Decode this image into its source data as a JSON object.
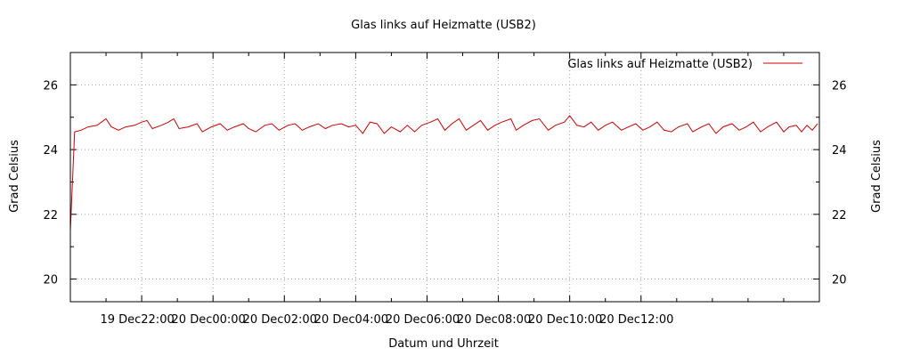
{
  "chart_data": {
    "type": "line",
    "title": "Glas links auf Heizmatte (USB2)",
    "xlabel": "Datum und Uhrzeit",
    "ylabel": "Grad Celsius",
    "y2label": "Grad Celsius",
    "ylim": [
      19.3,
      27.0
    ],
    "y_ticks": [
      20,
      22,
      24,
      26
    ],
    "x_ticks": [
      "19 Dec22:00",
      "20 Dec00:00",
      "20 Dec02:00",
      "20 Dec04:00",
      "20 Dec06:00",
      "20 Dec08:00",
      "20 Dec10:00",
      "20 Dec12:00"
    ],
    "grid": true,
    "legend_position": "top-right",
    "colors": {
      "series": "#cc0000",
      "grid": "#a0a0a0",
      "axis": "#000000"
    },
    "series": [
      {
        "name": "Glas links auf Heizmatte (USB2)",
        "x_hours_note": "x values in hours since 19 Dec 20:00",
        "points": [
          [
            0.0,
            21.5
          ],
          [
            0.12,
            24.55
          ],
          [
            0.3,
            24.6
          ],
          [
            0.5,
            24.7
          ],
          [
            0.75,
            24.75
          ],
          [
            1.0,
            24.95
          ],
          [
            1.15,
            24.7
          ],
          [
            1.35,
            24.6
          ],
          [
            1.55,
            24.7
          ],
          [
            1.8,
            24.75
          ],
          [
            2.0,
            24.85
          ],
          [
            2.15,
            24.9
          ],
          [
            2.3,
            24.65
          ],
          [
            2.55,
            24.75
          ],
          [
            2.75,
            24.85
          ],
          [
            2.9,
            24.95
          ],
          [
            3.05,
            24.65
          ],
          [
            3.3,
            24.7
          ],
          [
            3.55,
            24.8
          ],
          [
            3.7,
            24.55
          ],
          [
            3.95,
            24.7
          ],
          [
            4.2,
            24.8
          ],
          [
            4.4,
            24.6
          ],
          [
            4.6,
            24.7
          ],
          [
            4.85,
            24.8
          ],
          [
            5.0,
            24.65
          ],
          [
            5.2,
            24.55
          ],
          [
            5.45,
            24.75
          ],
          [
            5.65,
            24.8
          ],
          [
            5.85,
            24.6
          ],
          [
            6.1,
            24.75
          ],
          [
            6.3,
            24.8
          ],
          [
            6.5,
            24.6
          ],
          [
            6.7,
            24.7
          ],
          [
            6.95,
            24.8
          ],
          [
            7.15,
            24.65
          ],
          [
            7.35,
            24.75
          ],
          [
            7.6,
            24.8
          ],
          [
            7.8,
            24.7
          ],
          [
            8.0,
            24.75
          ],
          [
            8.2,
            24.5
          ],
          [
            8.4,
            24.85
          ],
          [
            8.6,
            24.8
          ],
          [
            8.8,
            24.5
          ],
          [
            9.0,
            24.7
          ],
          [
            9.25,
            24.55
          ],
          [
            9.45,
            24.75
          ],
          [
            9.65,
            24.55
          ],
          [
            9.85,
            24.75
          ],
          [
            10.1,
            24.85
          ],
          [
            10.3,
            24.95
          ],
          [
            10.5,
            24.6
          ],
          [
            10.7,
            24.8
          ],
          [
            10.9,
            24.95
          ],
          [
            11.1,
            24.6
          ],
          [
            11.3,
            24.75
          ],
          [
            11.5,
            24.9
          ],
          [
            11.7,
            24.6
          ],
          [
            11.9,
            24.75
          ],
          [
            12.1,
            24.85
          ],
          [
            12.35,
            24.95
          ],
          [
            12.5,
            24.6
          ],
          [
            12.7,
            24.75
          ],
          [
            12.95,
            24.9
          ],
          [
            13.15,
            24.95
          ],
          [
            13.4,
            24.6
          ],
          [
            13.6,
            24.75
          ],
          [
            13.85,
            24.85
          ],
          [
            14.0,
            25.05
          ],
          [
            14.2,
            24.75
          ],
          [
            14.4,
            24.7
          ],
          [
            14.6,
            24.85
          ],
          [
            14.8,
            24.6
          ],
          [
            15.0,
            24.75
          ],
          [
            15.2,
            24.85
          ],
          [
            15.45,
            24.6
          ],
          [
            15.65,
            24.7
          ],
          [
            15.85,
            24.8
          ],
          [
            16.05,
            24.6
          ],
          [
            16.25,
            24.7
          ],
          [
            16.45,
            24.85
          ],
          [
            16.65,
            24.6
          ],
          [
            16.85,
            24.55
          ],
          [
            17.05,
            24.7
          ],
          [
            17.3,
            24.8
          ],
          [
            17.45,
            24.55
          ],
          [
            17.7,
            24.7
          ],
          [
            17.9,
            24.8
          ],
          [
            18.1,
            24.5
          ],
          [
            18.3,
            24.7
          ],
          [
            18.55,
            24.8
          ],
          [
            18.75,
            24.6
          ],
          [
            18.95,
            24.7
          ],
          [
            19.15,
            24.85
          ],
          [
            19.35,
            24.55
          ],
          [
            19.55,
            24.7
          ],
          [
            19.8,
            24.85
          ],
          [
            20.0,
            24.55
          ],
          [
            20.15,
            24.7
          ],
          [
            20.35,
            24.75
          ],
          [
            20.5,
            24.55
          ],
          [
            20.65,
            24.75
          ],
          [
            20.8,
            24.6
          ],
          [
            20.95,
            24.8
          ]
        ]
      }
    ],
    "x_range_hours": [
      0,
      21.0
    ],
    "x_tick_hours": [
      2,
      4,
      6,
      8,
      10,
      12,
      14,
      16
    ]
  }
}
